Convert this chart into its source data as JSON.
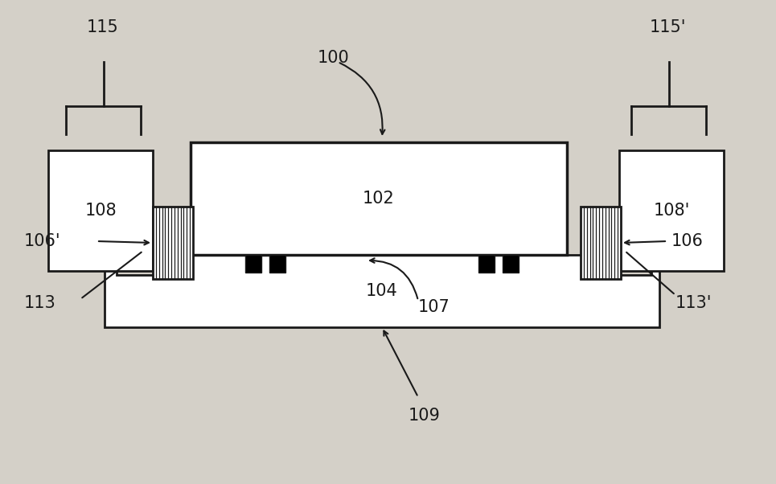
{
  "bg_color": "#d4d0c8",
  "line_color": "#1a1a1a",
  "fill_color": "#ffffff",
  "fig_width": 9.65,
  "fig_height": 6.02,
  "lw": 2.0
}
